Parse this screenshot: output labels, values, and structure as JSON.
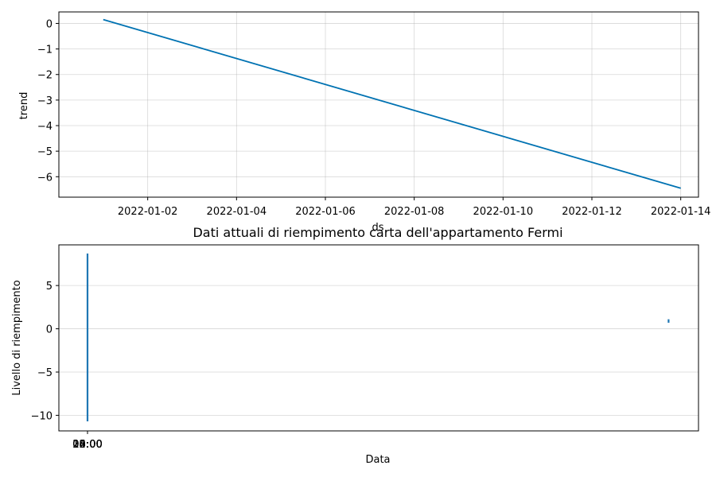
{
  "chart_data": [
    {
      "type": "line",
      "title": "",
      "xlabel": "ds",
      "ylabel": "trend",
      "x_ticks": [
        "2022-01-02",
        "2022-01-04",
        "2022-01-06",
        "2022-01-08",
        "2022-01-10",
        "2022-01-12",
        "2022-01-14"
      ],
      "y_ticks": [
        "0",
        "−1",
        "−2",
        "−3",
        "−4",
        "−5",
        "−6"
      ],
      "xlim": [
        "2021-12-31T00:00",
        "2022-01-14T09:36"
      ],
      "ylim": [
        -6.8,
        0.45
      ],
      "grid": true,
      "color": "#0072b2",
      "series": [
        {
          "x": [
            "2022-01-01T00:00",
            "2022-01-14T00:00"
          ],
          "y": [
            0.15,
            -6.45
          ]
        }
      ]
    },
    {
      "type": "line",
      "title": "Dati attuali di riempimento carta dell'appartamento Fermi",
      "xlabel": "Data",
      "ylabel": "Livello di riempimento",
      "x_ticks_overlapping": [
        "16:00",
        "20:00",
        "00:00",
        "04:00",
        "08:00",
        "12:00"
      ],
      "y_ticks": [
        "5",
        "0",
        "−5",
        "−10"
      ],
      "y_tick_values": [
        5,
        0,
        -5,
        -10
      ],
      "xlim": [
        "2022-01-01T00:00",
        "2022-01-21T10:00"
      ],
      "ylim": [
        -11.8,
        9.7
      ],
      "grid": "y",
      "color": "#1f77b4",
      "segments": [
        {
          "x": "2022-01-01T00:00",
          "ymin": -10.7,
          "ymax": 8.7
        },
        {
          "x": "2022-01-20T10:00",
          "ymin": 0.7,
          "ymax": 1.1
        }
      ]
    }
  ]
}
